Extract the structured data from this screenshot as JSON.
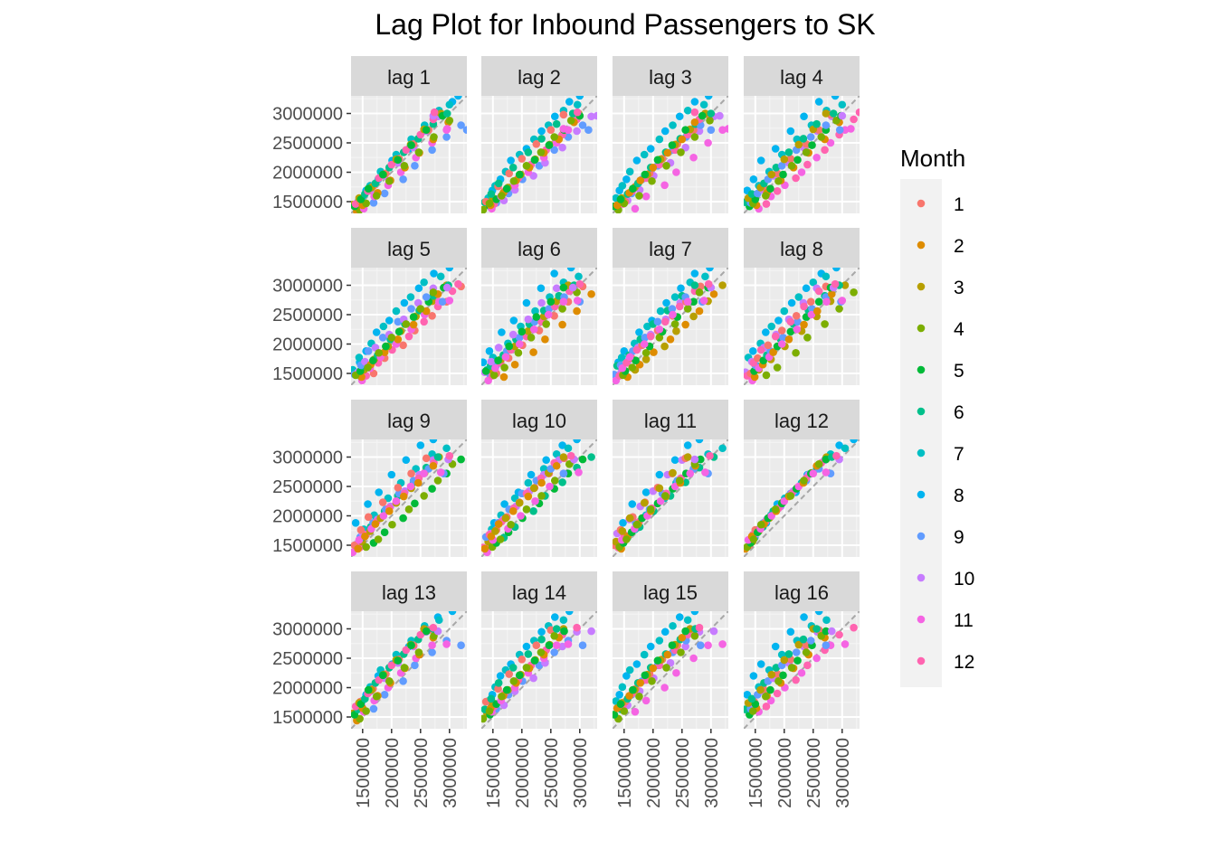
{
  "chart_data": {
    "type": "scatter",
    "title": "Lag Plot for Inbound Passengers to SK",
    "subtitle": "",
    "xlabel": "",
    "ylabel": "",
    "facets": [
      "lag 1",
      "lag 2",
      "lag 3",
      "lag 4",
      "lag 5",
      "lag 6",
      "lag 7",
      "lag 8",
      "lag 9",
      "lag 10",
      "lag 11",
      "lag 12",
      "lag 13",
      "lag 14",
      "lag 15",
      "lag 16"
    ],
    "facet_rows": 4,
    "facet_cols": 4,
    "xlim": [
      1300000,
      3300000
    ],
    "ylim": [
      1300000,
      3300000
    ],
    "x_ticks": [
      1500000,
      2000000,
      2500000,
      3000000
    ],
    "y_ticks": [
      1500000,
      2000000,
      2500000,
      3000000
    ],
    "x_tick_labels": [
      "1500000",
      "2000000",
      "2500000",
      "3000000"
    ],
    "y_tick_labels": [
      "1500000",
      "2000000",
      "2500000",
      "3000000"
    ],
    "reference_line": "y = x (dashed)",
    "grid": true,
    "legend": {
      "title": "Month",
      "position": "right",
      "entries": [
        {
          "label": "1",
          "color": "#F8766D"
        },
        {
          "label": "2",
          "color": "#DE8C00"
        },
        {
          "label": "3",
          "color": "#B79F00"
        },
        {
          "label": "4",
          "color": "#7CAE00"
        },
        {
          "label": "5",
          "color": "#00BA38"
        },
        {
          "label": "6",
          "color": "#00C08B"
        },
        {
          "label": "7",
          "color": "#00BFC4"
        },
        {
          "label": "8",
          "color": "#00B4F0"
        },
        {
          "label": "9",
          "color": "#619CFF"
        },
        {
          "label": "10",
          "color": "#C77CFF"
        },
        {
          "label": "11",
          "color": "#F564E3"
        },
        {
          "label": "12",
          "color": "#FF64B0"
        }
      ]
    },
    "series_monthly": [
      1400000,
      1330000,
      1450000,
      1360000,
      1420000,
      1490000,
      1560000,
      1690000,
      1480000,
      1520000,
      1380000,
      1460000,
      1500000,
      1440000,
      1560000,
      1470000,
      1540000,
      1630000,
      1770000,
      1880000,
      1640000,
      1700000,
      1590000,
      1680000,
      1760000,
      1650000,
      1740000,
      1600000,
      1720000,
      1810000,
      2010000,
      2200000,
      1880000,
      1940000,
      1780000,
      1900000,
      1980000,
      1860000,
      1960000,
      1850000,
      1960000,
      2080000,
      2300000,
      2400000,
      2110000,
      2160000,
      2000000,
      2130000,
      2230000,
      2080000,
      2220000,
      2110000,
      2210000,
      2340000,
      2560000,
      2700000,
      2380000,
      2420000,
      2250000,
      2380000,
      2480000,
      2330000,
      2470000,
      2340000,
      2460000,
      2570000,
      2800000,
      2950000,
      2600000,
      2700000,
      2500000,
      2640000,
      2720000,
      2560000,
      2730000,
      2600000,
      2720000,
      2820000,
      3050000,
      3200000,
      2800000,
      2950000,
      2720000,
      2900000,
      2980000,
      2850000,
      3000000,
      2880000,
      2960000,
      3000000,
      3150000,
      3300000,
      2720000,
      2960000,
      2740000,
      3020000
    ],
    "series_start_month": 1
  }
}
